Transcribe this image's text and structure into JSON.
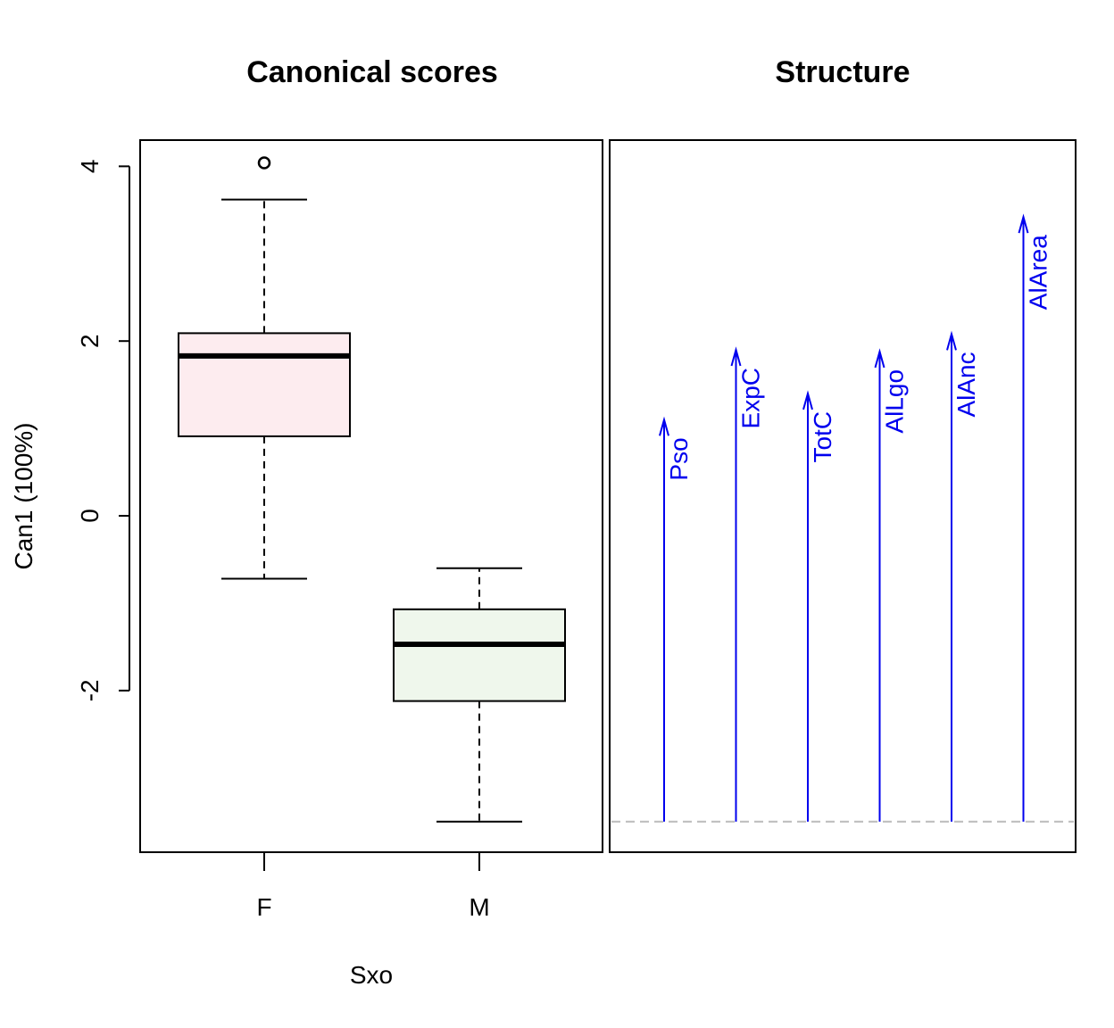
{
  "chart_data": [
    {
      "type": "box",
      "title": "Canonical scores",
      "xlabel": "Sxo",
      "ylabel": "Can1 (100%)",
      "categories": [
        "F",
        "M"
      ],
      "yticks": [
        -2,
        0,
        2,
        4
      ],
      "ylim": [
        -3.85,
        4.3
      ],
      "boxes": [
        {
          "category": "F",
          "whisker_low": -0.72,
          "q1": 0.91,
          "median": 1.83,
          "q3": 2.09,
          "whisker_high": 3.62,
          "outliers": [
            4.04
          ],
          "fill": "#fdecef"
        },
        {
          "category": "M",
          "whisker_low": -3.5,
          "q1": -2.12,
          "median": -1.47,
          "q3": -1.07,
          "whisker_high": -0.6,
          "outliers": [],
          "fill": "#eff7ec"
        }
      ]
    },
    {
      "type": "vector",
      "title": "Structure",
      "baseline": -3.5,
      "color": "#0000ee",
      "vectors": [
        {
          "label": "Pso",
          "value": 1.1
        },
        {
          "label": "ExpC",
          "value": 1.9
        },
        {
          "label": "TotC",
          "value": 1.4
        },
        {
          "label": "AlLgo",
          "value": 1.88
        },
        {
          "label": "AlAnc",
          "value": 2.08
        },
        {
          "label": "AlArea",
          "value": 3.42
        }
      ]
    }
  ]
}
